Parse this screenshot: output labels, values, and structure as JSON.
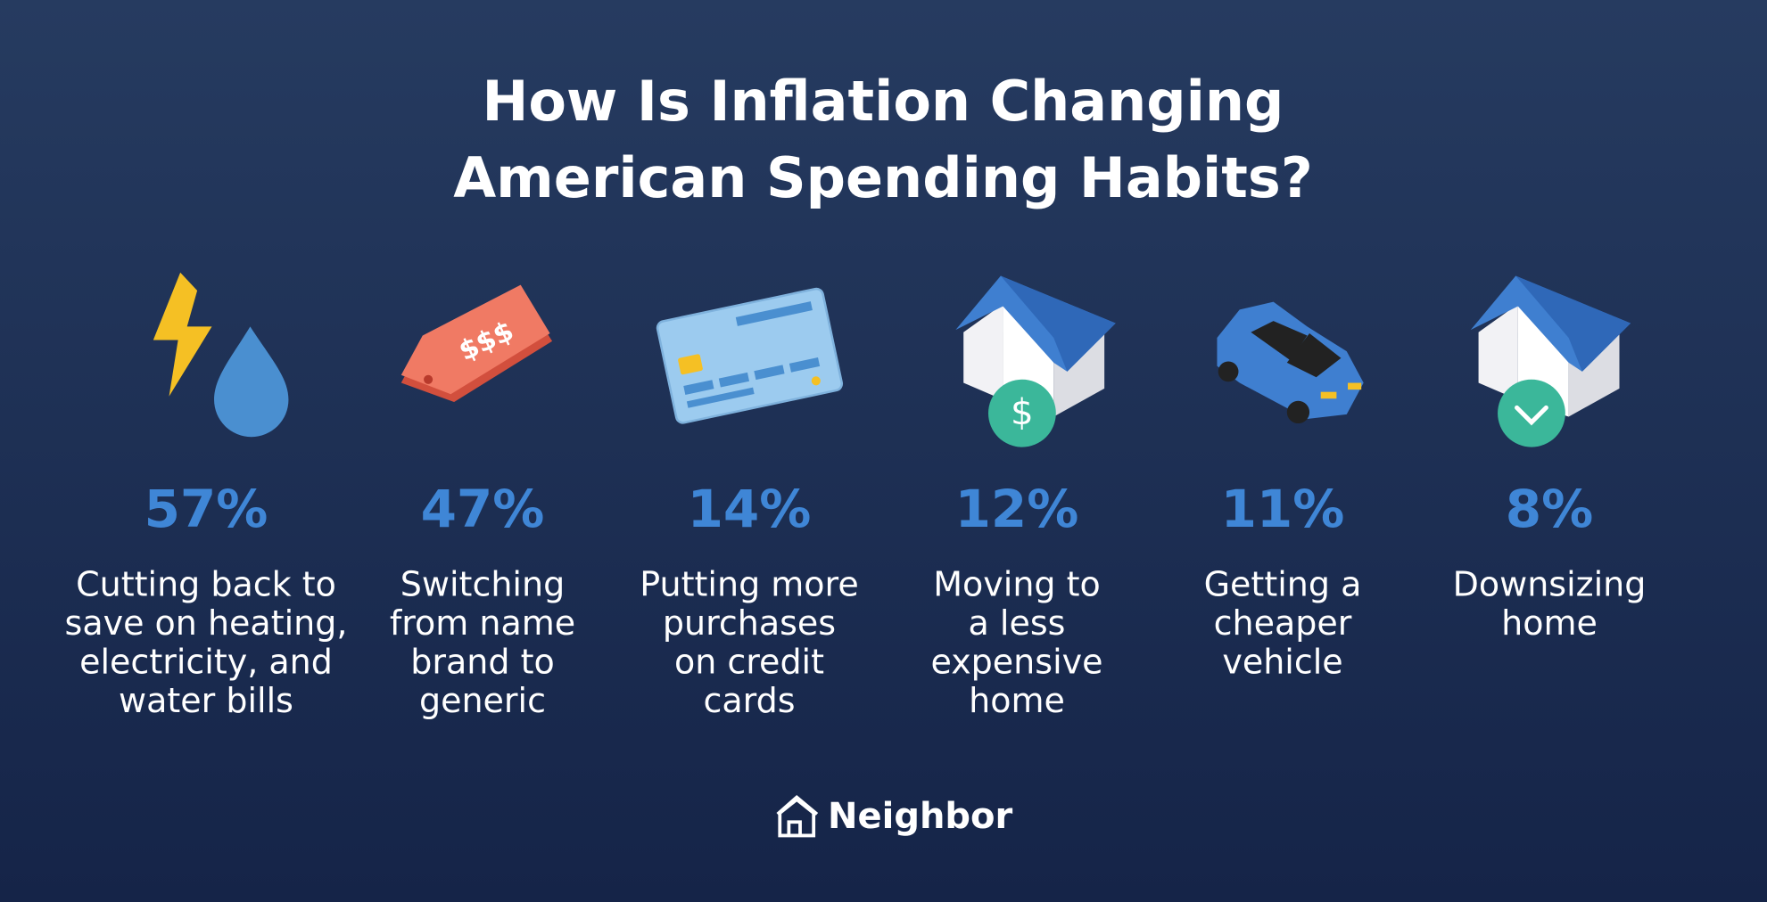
{
  "header": {
    "title": [
      "How Is Inflation Changing",
      "American Spending Habits?"
    ]
  },
  "items": [
    {
      "percent": "57%",
      "label": [
        "Cutting back to",
        "save on heating,",
        "electricity, and",
        "water bills"
      ]
    },
    {
      "percent": "47%",
      "label": [
        "Switching",
        "from name",
        "brand to",
        "generic"
      ]
    },
    {
      "percent": "14%",
      "label": [
        "Putting more",
        "purchases",
        "on credit",
        "cards"
      ]
    },
    {
      "percent": "12%",
      "label": [
        "Moving to",
        "a less",
        "expensive",
        "home"
      ]
    },
    {
      "percent": "11%",
      "label": [
        "Getting a",
        "cheaper",
        "vehicle"
      ]
    },
    {
      "percent": "8%",
      "label": [
        "Downsizing",
        "home"
      ]
    }
  ],
  "icons": {
    "tag_text": "$$$",
    "coin_text": "$"
  },
  "footer": {
    "brand": "Neighbor"
  }
}
